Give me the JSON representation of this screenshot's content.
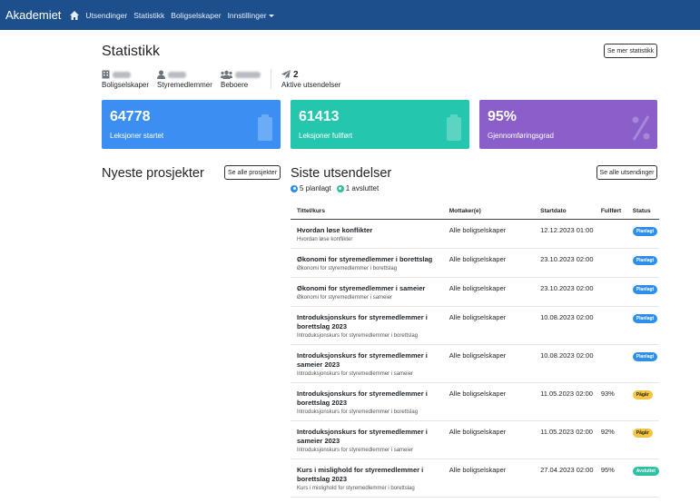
{
  "nav": {
    "brand": "Akademiet",
    "links": [
      "Utsendinger",
      "Statistikk",
      "Boligselskaper"
    ],
    "settings": "Innstillinger"
  },
  "page": {
    "title": "Statistikk",
    "more_stats_button": "Se mer statistikk"
  },
  "summary": {
    "boligselskaper": "Boligselskaper",
    "styremedlemmer": "Styremedlemmer",
    "beboere": "Beboere",
    "aktive_count": "2",
    "aktive_label": "Aktive utsendelser"
  },
  "cards": [
    {
      "value": "64778",
      "label": "Leksjoner startet",
      "color": "#3b8ff2"
    },
    {
      "value": "61413",
      "label": "Leksjoner fullført",
      "color": "#25c6ae"
    },
    {
      "value": "95%",
      "label": "Gjennomføringsgrad",
      "color": "#8a5fc9"
    }
  ],
  "projects": {
    "title": "Nyeste prosjekter",
    "button": "Se alle prosjekter"
  },
  "sends": {
    "title": "Siste utsendelser",
    "button": "Se alle utsendinger",
    "planned_legend": "5 planlagt",
    "finished_legend": "1 avsluttet",
    "columns": [
      "Tittel/kurs",
      "Mottaker(e)",
      "Startdato",
      "Fullført",
      "Status"
    ],
    "rows": [
      {
        "title": "Hvordan løse konflikter",
        "subtitle": "Hvordan løse konflikter",
        "recipient": "Alle boligselskaper",
        "date": "12.12.2023 01:00",
        "completed": "",
        "status": "Planlagt"
      },
      {
        "title": "Økonomi for styremedlemmer i borettslag",
        "subtitle": "Økonomi for styremedlemmer i borettslag",
        "recipient": "Alle boligselskaper",
        "date": "23.10.2023 02:00",
        "completed": "",
        "status": "Planlagt"
      },
      {
        "title": "Økonomi for styremedlemmer i sameier",
        "subtitle": "Økonomi for styremedlemmer i sameier",
        "recipient": "Alle boligselskaper",
        "date": "23.10.2023 02:00",
        "completed": "",
        "status": "Planlagt"
      },
      {
        "title": "Introduksjonskurs for styremedlemmer i borettslag 2023",
        "subtitle": "Introduksjonskurs for styremedlemmer i borettslag",
        "recipient": "Alle boligselskaper",
        "date": "10.08.2023 02:00",
        "completed": "",
        "status": "Planlagt"
      },
      {
        "title": "Introduksjonskurs for styremedlemmer i sameier 2023",
        "subtitle": "Introduksjonskurs for styremedlemmer i sameier",
        "recipient": "Alle boligselskaper",
        "date": "10.08.2023 02:00",
        "completed": "",
        "status": "Planlagt"
      },
      {
        "title": "Introduksjonskurs for styremedlemmer i borettslag 2023",
        "subtitle": "Introduksjonskurs for styremedlemmer i borettslag",
        "recipient": "Alle boligselskaper",
        "date": "11.05.2023 02:00",
        "completed": "93%",
        "status": "Pågår"
      },
      {
        "title": "Introduksjonskurs for styremedlemmer i sameier 2023",
        "subtitle": "Introduksjonskurs for styremedlemmer i sameier",
        "recipient": "Alle boligselskaper",
        "date": "11.05.2023 02:00",
        "completed": "92%",
        "status": "Pågår"
      },
      {
        "title": "Kurs i mislighold for styremedlemmer i borettslag 2023",
        "subtitle": "Kurs i mislighold for styremedlemmer i borettslag",
        "recipient": "Alle boligselskaper",
        "date": "27.04.2023 02:00",
        "completed": "95%",
        "status": "Avsluttet"
      }
    ]
  }
}
